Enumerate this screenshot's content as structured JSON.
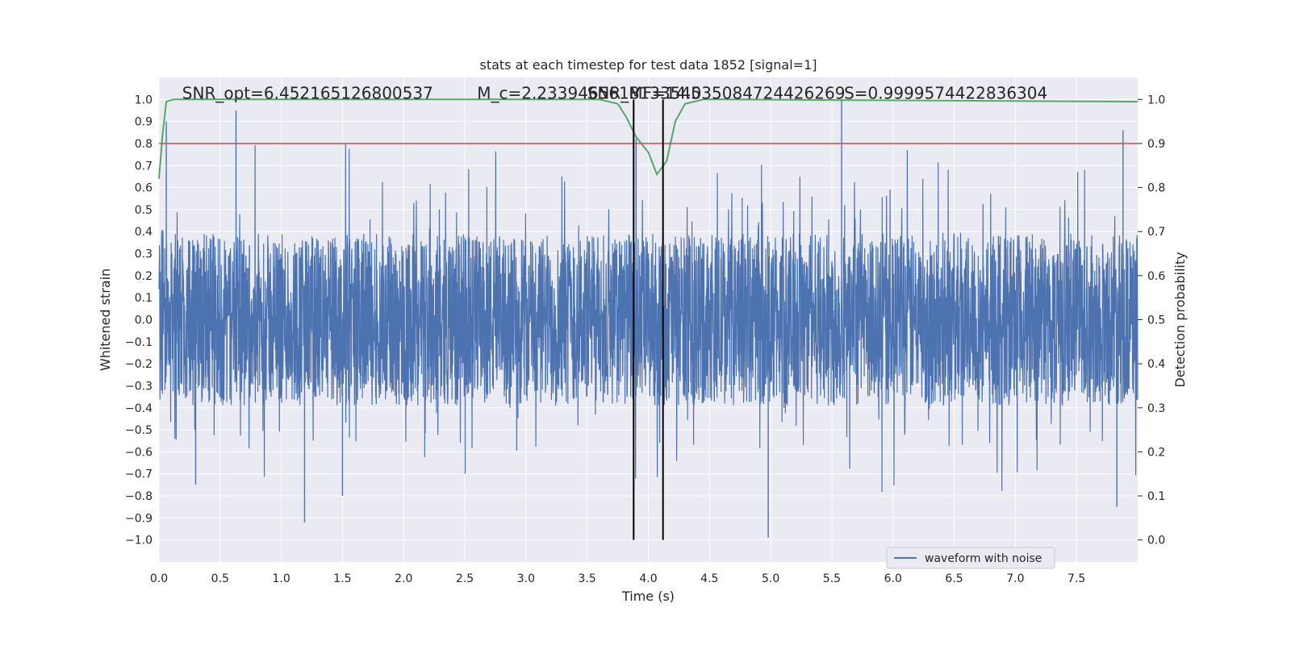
{
  "chart_data": {
    "type": "line",
    "title": "stats at each timestep for test data 1852 [signal=1]",
    "xlabel": "Time (s)",
    "ylabel": "Whitened strain",
    "y2label": "Detection probability",
    "xlim": [
      0.0,
      8.0
    ],
    "ylim": [
      -1.1,
      1.1
    ],
    "y2lim": [
      -0.05,
      1.05
    ],
    "grid": true,
    "x_ticks": [
      "0.0",
      "0.5",
      "1.0",
      "1.5",
      "2.0",
      "2.5",
      "3.0",
      "3.5",
      "4.0",
      "4.5",
      "5.0",
      "5.5",
      "6.0",
      "6.5",
      "7.0",
      "7.5"
    ],
    "x_tick_values": [
      0.0,
      0.5,
      1.0,
      1.5,
      2.0,
      2.5,
      3.0,
      3.5,
      4.0,
      4.5,
      5.0,
      5.5,
      6.0,
      6.5,
      7.0,
      7.5
    ],
    "y_ticks": [
      "1.0",
      "0.9",
      "0.8",
      "0.7",
      "0.6",
      "0.5",
      "0.4",
      "0.3",
      "0.2",
      "0.1",
      "0.0",
      "−0.1",
      "−0.2",
      "−0.3",
      "−0.4",
      "−0.5",
      "−0.6",
      "−0.7",
      "−0.8",
      "−0.9",
      "−1.0"
    ],
    "y_tick_values": [
      1.0,
      0.9,
      0.8,
      0.7,
      0.6,
      0.5,
      0.4,
      0.3,
      0.2,
      0.1,
      0.0,
      -0.1,
      -0.2,
      -0.3,
      -0.4,
      -0.5,
      -0.6,
      -0.7,
      -0.8,
      -0.9,
      -1.0
    ],
    "y2_ticks": [
      "1.0",
      "0.9",
      "0.8",
      "0.7",
      "0.6",
      "0.5",
      "0.4",
      "0.3",
      "0.2",
      "0.1",
      "0.0"
    ],
    "y2_tick_values": [
      1.0,
      0.9,
      0.8,
      0.7,
      0.6,
      0.5,
      0.4,
      0.3,
      0.2,
      0.1,
      0.0
    ],
    "annotations": [
      {
        "text": "SNR_opt=6.452165126800537",
        "x": 0.19
      },
      {
        "text": "M_c=2.2339465618133545",
        "x": 2.6
      },
      {
        "text": "SNR_MF=14.035084724426269",
        "x": 3.5
      },
      {
        "text": "S=0.9999574422836304",
        "x": 5.6
      }
    ],
    "series": [
      {
        "name": "waveform with noise",
        "color": "#4c72b0",
        "style": "dense noisy strain, envelope mostly within ±0.4 with spikes to about ±1.0",
        "x_range": [
          0.0,
          8.0
        ],
        "peaks": [
          {
            "x": 0.06,
            "y": 0.9
          },
          {
            "x": 0.63,
            "y": 0.95
          },
          {
            "x": 1.19,
            "y": -0.92
          },
          {
            "x": 1.5,
            "y": -0.8
          },
          {
            "x": 4.98,
            "y": -0.99
          },
          {
            "x": 5.58,
            "y": 1.0
          },
          {
            "x": 7.88,
            "y": 0.86
          },
          {
            "x": 7.83,
            "y": -0.85
          },
          {
            "x": 0.3,
            "y": -0.75
          },
          {
            "x": 3.9,
            "y": 0.82
          }
        ]
      },
      {
        "name": "",
        "color": "#55a868",
        "axis": "y2",
        "x": [
          0.0,
          0.03,
          0.06,
          0.12,
          0.2,
          3.4,
          3.6,
          3.75,
          3.82,
          3.9,
          4.0,
          4.07,
          4.15,
          4.22,
          4.3,
          4.45,
          4.6,
          8.0
        ],
        "y": [
          0.82,
          0.92,
          0.995,
          1.0,
          1.0,
          1.0,
          1.0,
          0.99,
          0.96,
          0.915,
          0.88,
          0.83,
          0.86,
          0.95,
          0.99,
          1.0,
          1.0,
          0.995
        ]
      }
    ],
    "threshold": {
      "axis": "y2",
      "value": 0.9,
      "color": "#c44e52"
    },
    "vlines": [
      {
        "x": 3.88
      },
      {
        "x": 4.12
      }
    ],
    "vline_color": "#000000",
    "legend": {
      "placement": "bottom-right",
      "entries": [
        "waveform with noise"
      ]
    },
    "colors": {
      "axes_bg": "#eaeaf2",
      "grid": "#ffffff",
      "text": "#262626"
    }
  }
}
